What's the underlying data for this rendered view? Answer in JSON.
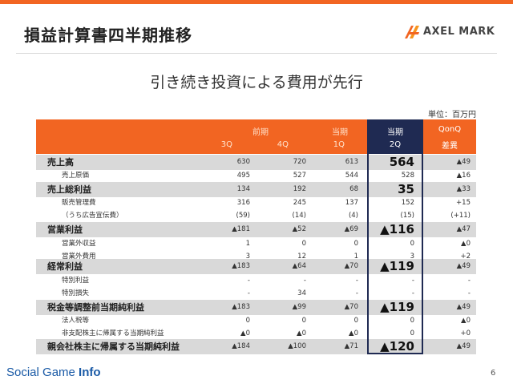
{
  "title": "損益計算書四半期推移",
  "brand": "AXEL MARK",
  "subtitle": "引き続き投資による費用が先行",
  "unit": "単位：百万円",
  "header": {
    "prev_period": "前期",
    "cur_period": "当期",
    "cur_period2": "当期",
    "qonq": "QonQ",
    "q3": "3Q",
    "q4": "4Q",
    "q1": "1Q",
    "q2": "2Q",
    "diff": "差異"
  },
  "rows": [
    {
      "label": "売上高",
      "type": "big",
      "v3q": "630",
      "v4q": "720",
      "v1q": "613",
      "v2q": "564",
      "diff": "▲49"
    },
    {
      "label": "売上原価",
      "type": "small",
      "v3q": "495",
      "v4q": "527",
      "v1q": "544",
      "v2q": "528",
      "diff": "▲16"
    },
    {
      "label": "売上総利益",
      "type": "big",
      "v3q": "134",
      "v4q": "192",
      "v1q": "68",
      "v2q": "35",
      "diff": "▲33"
    },
    {
      "label": "販売管理費",
      "type": "small",
      "v3q": "316",
      "v4q": "245",
      "v1q": "137",
      "v2q": "152",
      "diff": "+15"
    },
    {
      "label": "（うち広告宣伝費）",
      "type": "small",
      "v3q": "(59)",
      "v4q": "(14)",
      "v1q": "(4)",
      "v2q": "(15)",
      "diff": "(+11)"
    },
    {
      "label": "営業利益",
      "type": "big",
      "v3q": "▲181",
      "v4q": "▲52",
      "v1q": "▲69",
      "v2q": "▲116",
      "diff": "▲47"
    },
    {
      "label": "営業外収益",
      "type": "small",
      "v3q": "1",
      "v4q": "0",
      "v1q": "0",
      "v2q": "0",
      "diff": "▲0"
    },
    {
      "label": "営業外費用",
      "type": "small",
      "v3q": "3",
      "v4q": "12",
      "v1q": "1",
      "v2q": "3",
      "diff": "+2"
    },
    {
      "label": "経常利益",
      "type": "big",
      "v3q": "▲183",
      "v4q": "▲64",
      "v1q": "▲70",
      "v2q": "▲119",
      "diff": "▲49"
    },
    {
      "label": "特別利益",
      "type": "small",
      "v3q": "-",
      "v4q": "-",
      "v1q": "-",
      "v2q": "-",
      "diff": "-"
    },
    {
      "label": "特別損失",
      "type": "small",
      "v3q": "-",
      "v4q": "34",
      "v1q": "-",
      "v2q": "-",
      "diff": "-"
    },
    {
      "label": "税金等調整前当期純利益",
      "type": "big",
      "v3q": "▲183",
      "v4q": "▲99",
      "v1q": "▲70",
      "v2q": "▲119",
      "diff": "▲49"
    },
    {
      "label": "法人税等",
      "type": "small",
      "v3q": "0",
      "v4q": "0",
      "v1q": "0",
      "v2q": "0",
      "diff": "▲0"
    },
    {
      "label": "非支配株主に帰属する当期純利益",
      "type": "small",
      "v3q": "▲0",
      "v4q": "▲0",
      "v1q": "▲0",
      "v2q": "0",
      "diff": "+0"
    },
    {
      "label": "親会社株主に帰属する当期純利益",
      "type": "big",
      "v3q": "▲184",
      "v4q": "▲100",
      "v1q": "▲71",
      "v2q": "▲120",
      "diff": "▲49"
    }
  ],
  "footer": {
    "brand_regular": "Social Game ",
    "brand_bold": "Info",
    "page": "6"
  },
  "colors": {
    "accent": "#f26522",
    "highlight": "#1f2a52",
    "row_shade": "#d9d9d9"
  }
}
